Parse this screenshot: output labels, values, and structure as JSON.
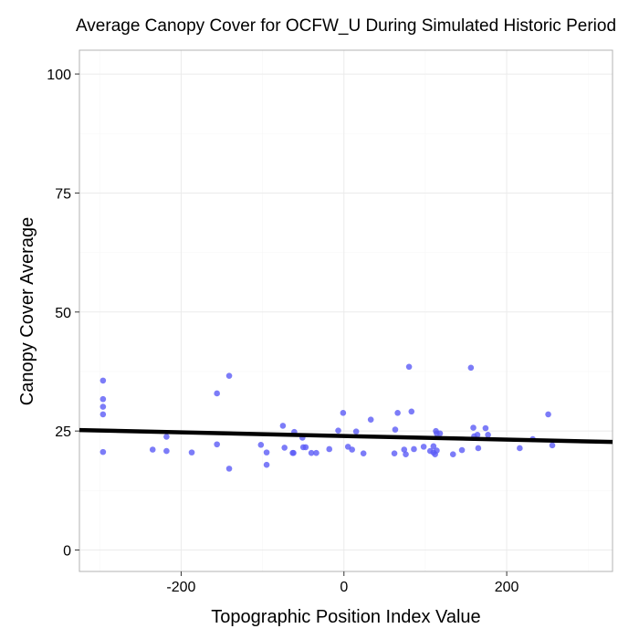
{
  "chart_data": {
    "type": "scatter",
    "title": "Average Canopy Cover for OCFW_U During Simulated Historic Period",
    "xlabel": "Topographic Position Index Value",
    "ylabel": "Canopy Cover Average",
    "xlim": [
      -325,
      330
    ],
    "ylim": [
      -4.5,
      105
    ],
    "x_ticks": [
      -200,
      0,
      200
    ],
    "x_tick_labels": [
      "-200",
      "0",
      "200"
    ],
    "y_ticks": [
      0,
      25,
      50,
      75,
      100
    ],
    "y_tick_labels": [
      "0",
      "25",
      "50",
      "75",
      "100"
    ],
    "grid": true,
    "legend": "none",
    "point_color": "#5b5bf6",
    "line_color": "#000000",
    "series": [
      {
        "x": [
          -296,
          -296,
          -296,
          -296,
          -296,
          -235,
          -218,
          -218,
          -187,
          -156,
          -156,
          -141,
          -141,
          -102,
          -95,
          -95,
          -75,
          -73,
          -63,
          -62,
          -61,
          -51,
          -50,
          -47,
          -40,
          -34,
          -18,
          -7,
          -1,
          5,
          10,
          15,
          24,
          33,
          62,
          63,
          66,
          74,
          76,
          83,
          86,
          80,
          98,
          106,
          110,
          110,
          112,
          113,
          114,
          114,
          118,
          134,
          145,
          156,
          159,
          160,
          164,
          165,
          174,
          177,
          216,
          232,
          251,
          256
        ],
        "y": [
          35.6,
          31.7,
          30.1,
          28.5,
          20.6,
          21.1,
          23.8,
          20.8,
          20.5,
          32.9,
          22.2,
          36.6,
          17.1,
          22.1,
          20.5,
          17.9,
          26.1,
          21.5,
          20.4,
          20.4,
          24.8,
          23.6,
          21.6,
          21.6,
          20.4,
          20.4,
          21.2,
          25.1,
          28.8,
          21.7,
          21.1,
          24.9,
          20.3,
          27.4,
          20.3,
          25.3,
          28.8,
          21.1,
          20.1,
          29.1,
          21.2,
          38.5,
          21.7,
          20.8,
          20.5,
          21.8,
          20.1,
          25.0,
          24.5,
          20.9,
          24.5,
          20.1,
          21.0,
          38.3,
          25.7,
          23.9,
          24.2,
          21.4,
          25.6,
          24.2,
          21.4,
          23.3,
          28.5,
          22.0
        ]
      }
    ],
    "trend_line": {
      "x": [
        -325,
        330
      ],
      "y": [
        25.2,
        22.7
      ]
    }
  }
}
